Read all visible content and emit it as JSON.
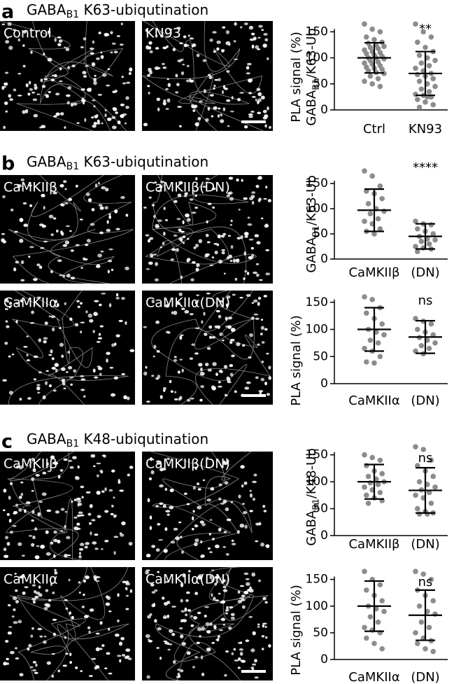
{
  "panels": [
    {
      "letter": "a",
      "title": {
        "name": "GABA",
        "sub": "B1",
        "rest": " K63-ubiqutination"
      },
      "images": [
        "Control",
        "KN93"
      ]
    },
    {
      "letter": "b",
      "title": {
        "name": "GABA",
        "sub": "B1",
        "rest": " K63-ubiqutination"
      },
      "images": [
        "CaMKIIβ",
        "CaMKIIβ(DN)",
        "CaMKIIα",
        "CaMKIIα(DN)"
      ]
    },
    {
      "letter": "c",
      "title": {
        "name": "GABA",
        "sub": "B1",
        "rest": " K48-ubiqutination"
      },
      "images": [
        "CaMKIIβ",
        "CaMKIIβ(DN)",
        "CaMKIIα",
        "CaMKIIα(DN)"
      ]
    }
  ],
  "axis_titles": [
    {
      "line1": "PLA signal (%)",
      "line2": {
        "name": "GABA",
        "sub": "B1",
        "rest": "/K63-Ub"
      }
    },
    {
      "line1": "PLA signal (%)",
      "line2": {
        "name": "GABA",
        "sub": "B1",
        "rest": "/K63-Ub"
      }
    },
    {
      "line1": "PLA signal (%)",
      "line2": {
        "name": "GABA",
        "sub": "B1",
        "rest": "/K48-Ub"
      }
    }
  ],
  "chart_data": [
    {
      "type": "dotplot",
      "categories": [
        "Ctrl",
        "KN93"
      ],
      "annotation": "**",
      "ylim": [
        0,
        160
      ],
      "yticks": [
        0,
        50,
        100,
        150
      ],
      "groups": [
        {
          "points": [
            165,
            155,
            150,
            140,
            135,
            130,
            128,
            125,
            122,
            120,
            118,
            115,
            112,
            110,
            108,
            105,
            103,
            100,
            100,
            98,
            95,
            92,
            90,
            88,
            85,
            82,
            80,
            78,
            75,
            72,
            70,
            65,
            60,
            55,
            50,
            45
          ],
          "mean": 100,
          "sd": 29
        },
        {
          "points": [
            165,
            150,
            140,
            130,
            120,
            112,
            105,
            100,
            95,
            90,
            85,
            80,
            75,
            70,
            68,
            65,
            60,
            55,
            50,
            45,
            40,
            35,
            30,
            28,
            25,
            20,
            15,
            10,
            5,
            25
          ],
          "mean": 70,
          "sd": 42
        }
      ]
    },
    {
      "type": "dotplot",
      "categories": [
        "CaMKIIβ",
        "(DN)"
      ],
      "annotation": "****",
      "ylim": [
        0,
        160
      ],
      "yticks": [
        0,
        50,
        100,
        150
      ],
      "groups": [
        {
          "points": [
            175,
            165,
            145,
            135,
            130,
            120,
            110,
            100,
            95,
            90,
            80,
            75,
            70,
            60,
            55,
            50
          ],
          "mean": 97,
          "sd": 42
        },
        {
          "points": [
            75,
            70,
            68,
            60,
            55,
            50,
            45,
            40,
            38,
            35,
            30,
            25,
            22,
            20,
            15
          ],
          "mean": 45,
          "sd": 25
        }
      ]
    },
    {
      "type": "dotplot",
      "categories": [
        "CaMKIIα",
        "(DN)"
      ],
      "annotation": "ns",
      "ylim": [
        0,
        160
      ],
      "yticks": [
        0,
        50,
        100,
        150
      ],
      "groups": [
        {
          "points": [
            160,
            155,
            140,
            130,
            120,
            110,
            100,
            95,
            90,
            80,
            75,
            65,
            60,
            50,
            40,
            38
          ],
          "mean": 100,
          "sd": 40
        },
        {
          "points": [
            120,
            115,
            110,
            100,
            95,
            90,
            85,
            80,
            75,
            70,
            65,
            60,
            55
          ],
          "mean": 86,
          "sd": 30
        }
      ]
    },
    {
      "type": "dotplot",
      "categories": [
        "CaMKIIβ",
        "(DN)"
      ],
      "annotation": "ns",
      "ylim": [
        0,
        160
      ],
      "yticks": [
        0,
        50,
        100,
        150
      ],
      "groups": [
        {
          "points": [
            150,
            145,
            140,
            130,
            120,
            115,
            110,
            105,
            100,
            98,
            95,
            90,
            85,
            80,
            75,
            70,
            65,
            60
          ],
          "mean": 100,
          "sd": 32
        },
        {
          "points": [
            165,
            160,
            140,
            130,
            120,
            110,
            100,
            95,
            90,
            85,
            80,
            75,
            70,
            60,
            50,
            45,
            42,
            40,
            40
          ],
          "mean": 84,
          "sd": 42
        }
      ]
    },
    {
      "type": "dotplot",
      "categories": [
        "CaMKIIα",
        "(DN)"
      ],
      "annotation": "ns",
      "ylim": [
        0,
        160
      ],
      "yticks": [
        0,
        50,
        100,
        150
      ],
      "groups": [
        {
          "points": [
            165,
            150,
            140,
            130,
            120,
            110,
            100,
            95,
            90,
            80,
            70,
            60,
            55,
            50,
            40,
            30,
            20
          ],
          "mean": 100,
          "sd": 47
        },
        {
          "points": [
            165,
            160,
            150,
            130,
            120,
            110,
            100,
            90,
            85,
            70,
            60,
            50,
            40,
            35,
            30,
            20,
            15
          ],
          "mean": 83,
          "sd": 47
        }
      ]
    }
  ]
}
